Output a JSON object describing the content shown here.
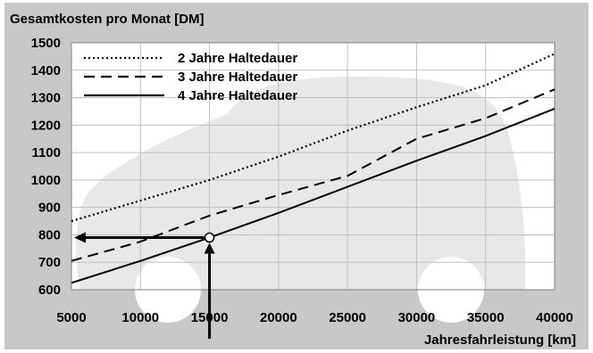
{
  "chart_data": {
    "type": "line",
    "title": "Gesamtkosten pro Monat [DM]",
    "xlabel": "Jahresfahrleistung [km]",
    "ylabel": "",
    "xlim": [
      5000,
      40000
    ],
    "ylim": [
      600,
      1500
    ],
    "x_ticks": [
      5000,
      10000,
      15000,
      20000,
      25000,
      30000,
      35000,
      40000
    ],
    "x_tick_labels": [
      "5000",
      "10000",
      "15000",
      "20000",
      "25000",
      "30000",
      "35000",
      "40000"
    ],
    "y_ticks": [
      600,
      700,
      800,
      900,
      1000,
      1100,
      1200,
      1300,
      1400,
      1500
    ],
    "y_tick_labels": [
      "600",
      "700",
      "800",
      "900",
      "1000",
      "1100",
      "1200",
      "1300",
      "1400",
      "1500"
    ],
    "grid": true,
    "legend_position": "top-left",
    "series": [
      {
        "name": "2 Jahre Haltedauer",
        "style": "dotted",
        "x": [
          5000,
          10000,
          15000,
          20000,
          25000,
          30000,
          35000,
          40000
        ],
        "values": [
          850,
          925,
          1000,
          1085,
          1180,
          1265,
          1345,
          1460
        ]
      },
      {
        "name": "3 Jahre Haltedauer",
        "style": "dashed",
        "x": [
          5000,
          10000,
          15000,
          20000,
          25000,
          30000,
          35000,
          40000
        ],
        "values": [
          705,
          775,
          870,
          945,
          1015,
          1150,
          1225,
          1330
        ]
      },
      {
        "name": "4 Jahre Haltedauer",
        "style": "solid",
        "x": [
          5000,
          10000,
          15000,
          20000,
          25000,
          30000,
          35000,
          40000
        ],
        "values": [
          625,
          705,
          790,
          880,
          975,
          1070,
          1160,
          1260
        ]
      }
    ],
    "annotation": {
      "x": 15000,
      "y": 790
    },
    "colors": {
      "frame": "#c8c8c8",
      "plot": "#ffffff",
      "grid": "#c0c0c0",
      "car": "#e8e8e8",
      "line": "#000000"
    }
  }
}
